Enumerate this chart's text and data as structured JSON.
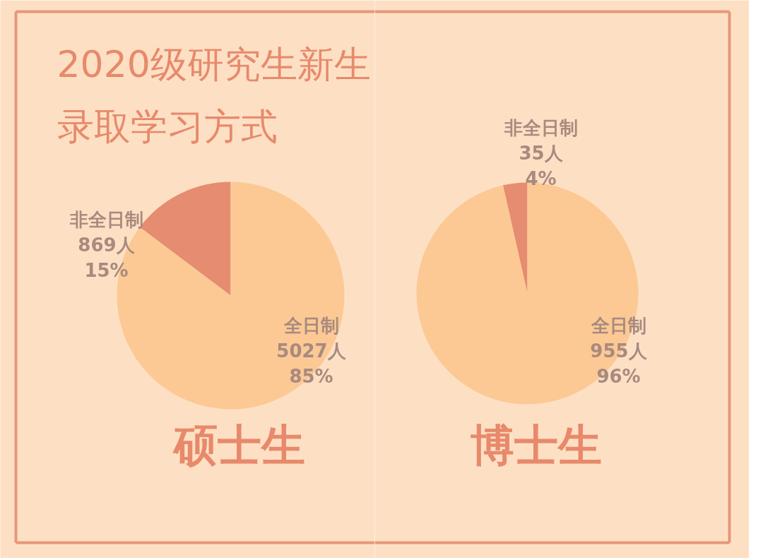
{
  "chart_data": [
    {
      "type": "pie",
      "title": "硕士生",
      "annotations": [
        "2020级研究生新生",
        "录取学习方式"
      ],
      "categories": [
        "非全日制",
        "全日制"
      ],
      "values": [
        869,
        5027
      ],
      "value_labels": [
        "869人\n15%",
        "5027人\n85%"
      ],
      "colors": [
        "#e68c70",
        "#fcc994"
      ]
    },
    {
      "type": "pie",
      "title": "博士生",
      "categories": [
        "非全日制",
        "全日制"
      ],
      "values": [
        35,
        955
      ],
      "value_labels": [
        "35人\n4%",
        "955人\n96%"
      ],
      "colors": [
        "#e68c70",
        "#fcc994"
      ]
    }
  ]
}
